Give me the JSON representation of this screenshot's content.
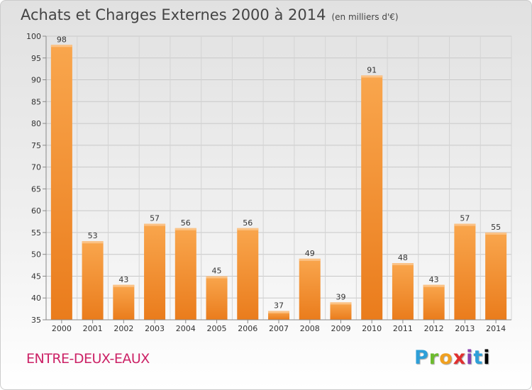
{
  "header": {
    "title": "Achats et Charges Externes 2000 à 2014",
    "subtitle": "(en milliers d'€)"
  },
  "footer": {
    "commune": "ENTRE-DEUX-EAUX",
    "logo": [
      "P",
      "r",
      "o",
      "x",
      "i",
      "t",
      "i"
    ]
  },
  "colors": {
    "bar_light": "#f9a64d",
    "bar_dark": "#ea7c1c",
    "bar_top": "#fbc285",
    "commune": "#cc2266"
  },
  "chart_data": {
    "type": "bar",
    "title": "Achats et Charges Externes 2000 à 2014",
    "subtitle": "(en milliers d'€)",
    "categories": [
      "2000",
      "2001",
      "2002",
      "2003",
      "2004",
      "2005",
      "2006",
      "2007",
      "2008",
      "2009",
      "2010",
      "2011",
      "2012",
      "2013",
      "2014"
    ],
    "values": [
      98,
      53,
      43,
      57,
      56,
      45,
      56,
      37,
      49,
      39,
      91,
      48,
      43,
      57,
      55
    ],
    "ylim": [
      35,
      100
    ],
    "yticks": [
      35,
      40,
      45,
      50,
      55,
      60,
      65,
      70,
      75,
      80,
      85,
      90,
      95,
      100
    ],
    "grid": true,
    "legend": "none"
  }
}
